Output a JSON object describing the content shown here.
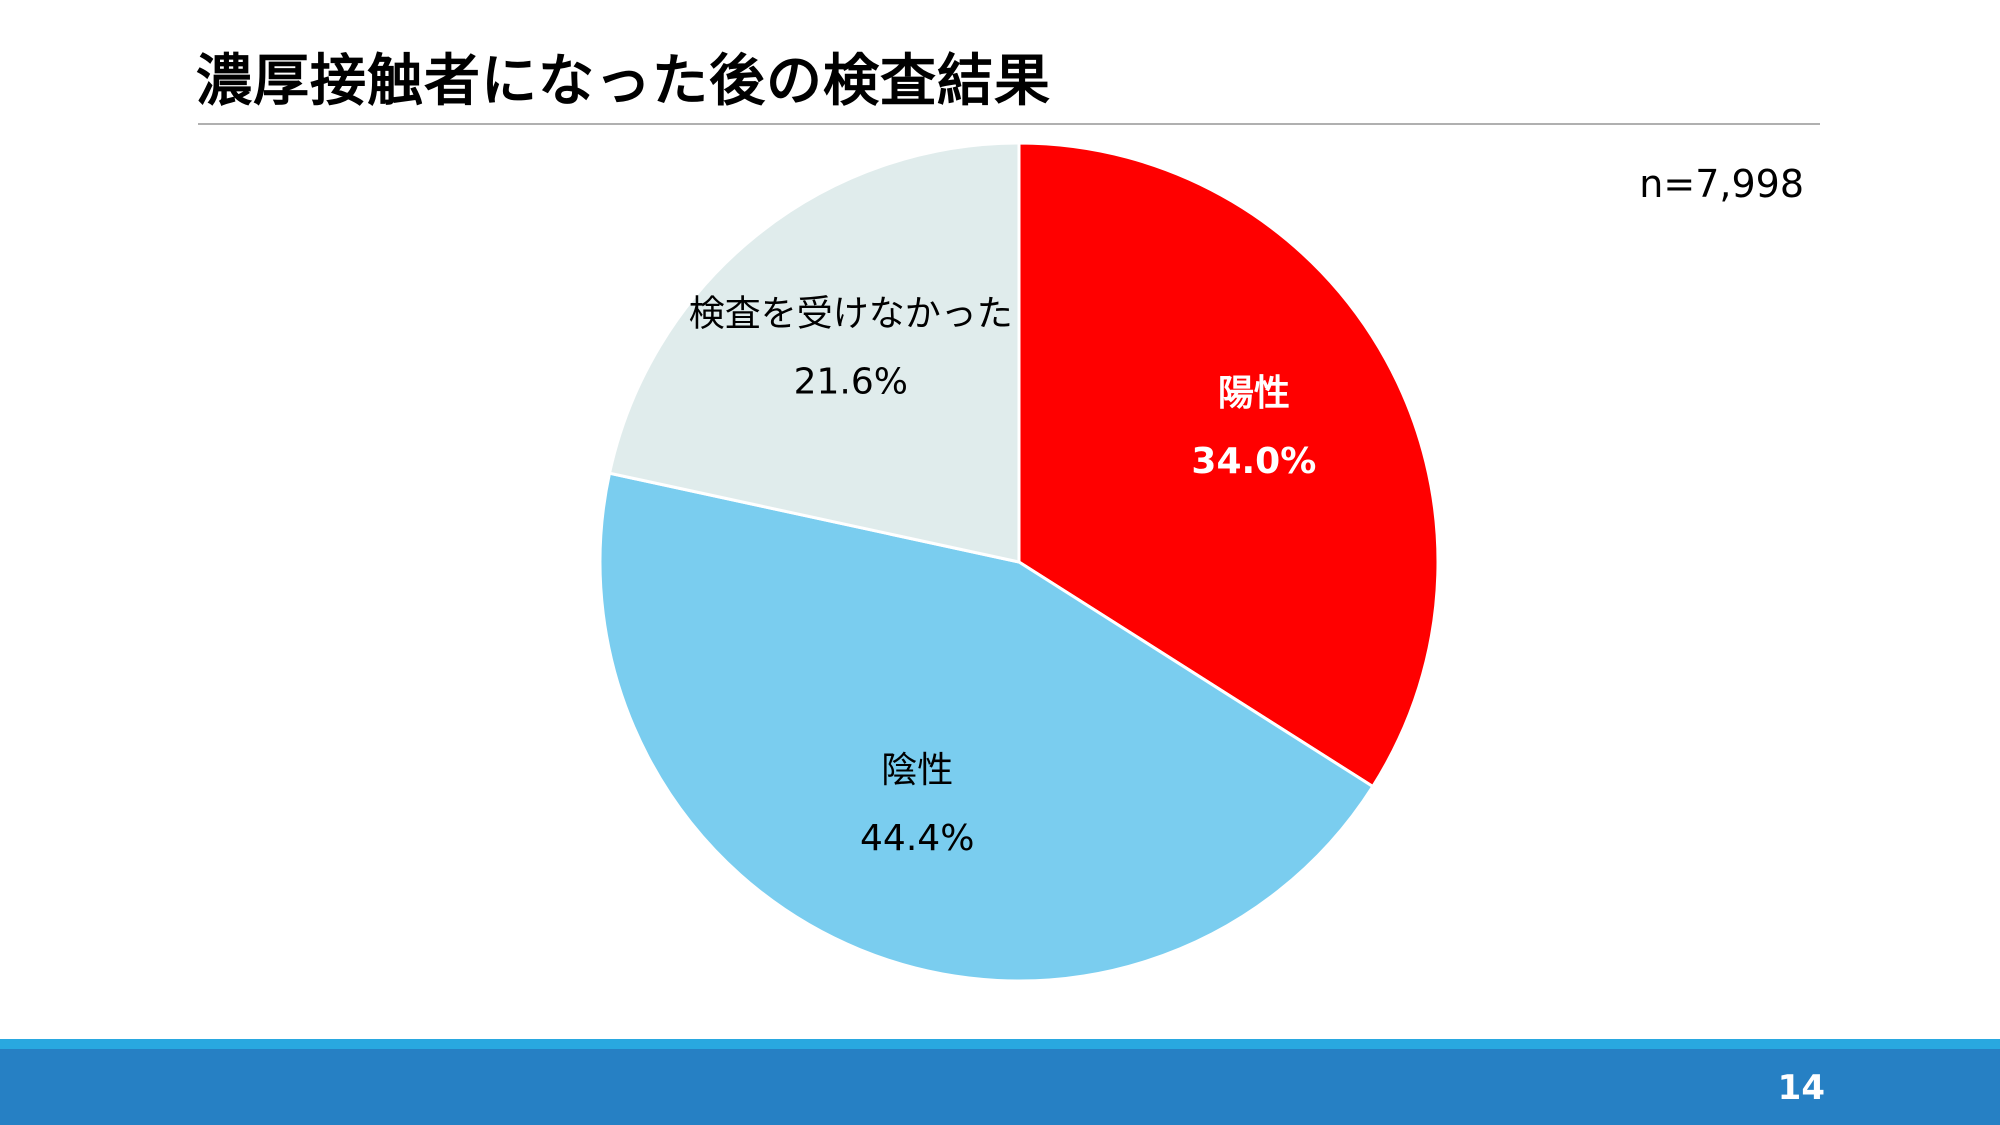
{
  "slide": {
    "title": "濃厚接触者になった後の検査結果",
    "sample_size": "n=7,998",
    "page_number": "14"
  },
  "colors": {
    "footer_line": "#29a8e0",
    "footer_bar": "#2680c4",
    "slice_border": "#ffffff"
  },
  "chart_data": {
    "type": "pie",
    "title": "濃厚接触者になった後の検査結果",
    "start_angle_deg": 0,
    "direction": "clockwise",
    "slices": [
      {
        "name": "陽性",
        "value": 34.0,
        "label": "34.0%",
        "color": "#ff0000",
        "label_color": "#ffffff",
        "bold": true
      },
      {
        "name": "陰性",
        "value": 44.4,
        "label": "44.4%",
        "color": "#7acdef",
        "label_color": "#000000",
        "bold": false
      },
      {
        "name": "検査を受けなかった",
        "value": 21.6,
        "label": "21.6%",
        "color": "#e0ecec",
        "label_color": "#000000",
        "bold": false
      }
    ]
  }
}
